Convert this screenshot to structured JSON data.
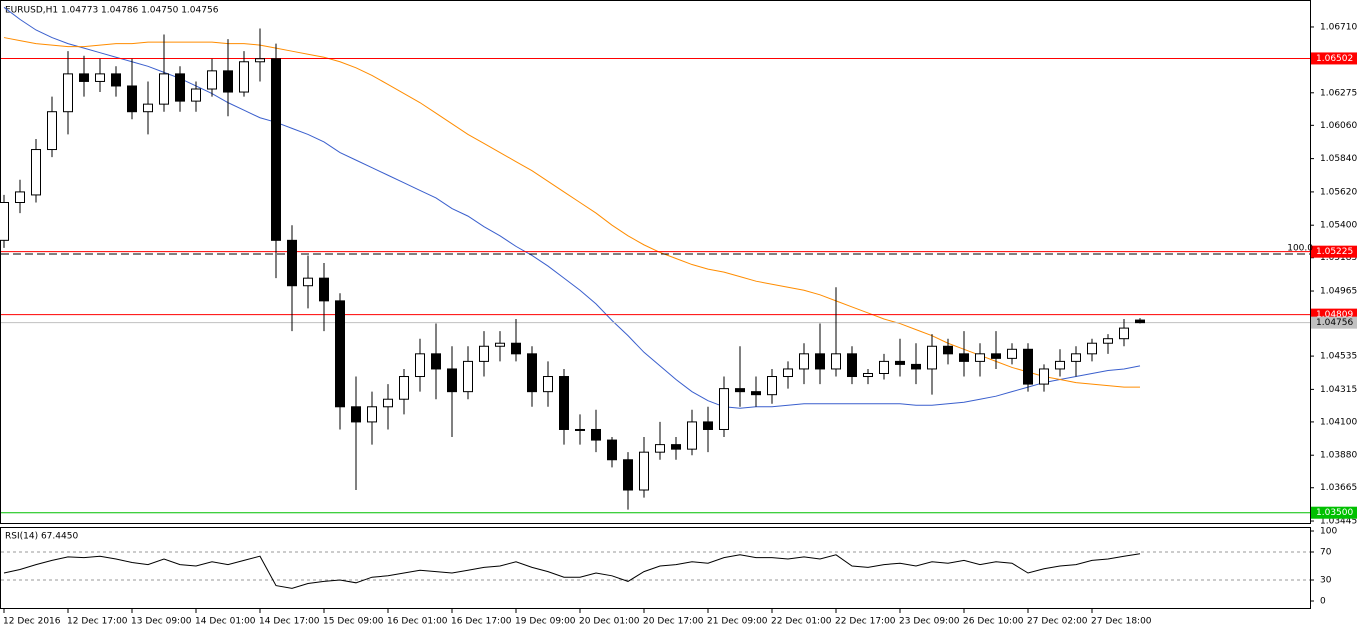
{
  "chart_data": [
    {
      "type": "candlestick",
      "title": "EURUSD,H1  1.04773 1.04786 1.04750 1.04756",
      "categories": [
        "12 Dec 2016",
        null,
        null,
        null,
        "12 Dec 17:00",
        null,
        null,
        null,
        "13 Dec 09:00",
        null,
        null,
        null,
        "14 Dec 01:00",
        null,
        null,
        null,
        "14 Dec 17:00",
        null,
        null,
        null,
        "15 Dec 09:00",
        null,
        null,
        null,
        "16 Dec 01:00",
        null,
        null,
        null,
        "16 Dec 17:00",
        null,
        null,
        null,
        "19 Dec 09:00",
        null,
        null,
        null,
        "20 Dec 01:00",
        null,
        null,
        null,
        "20 Dec 17:00",
        null,
        null,
        null,
        "21 Dec 09:00",
        null,
        null,
        null,
        "22 Dec 01:00",
        null,
        null,
        null,
        "22 Dec 17:00",
        null,
        null,
        null,
        "23 Dec 09:00",
        null,
        null,
        null,
        "26 Dec 10:00",
        null,
        null,
        null,
        "27 Dec 02:00",
        null,
        null,
        null,
        "27 Dec 18:00",
        null,
        null,
        null
      ],
      "open": [
        1.053,
        1.0555,
        1.056,
        1.059,
        1.0615,
        1.064,
        1.0635,
        1.064,
        1.0632,
        1.0615,
        1.062,
        1.064,
        1.0622,
        1.063,
        1.0642,
        1.0628,
        1.0648,
        1.065,
        1.053,
        1.05,
        1.0505,
        1.049,
        1.042,
        1.041,
        1.042,
        1.0425,
        1.044,
        1.0455,
        1.0445,
        1.043,
        1.045,
        1.046,
        1.0462,
        1.0455,
        1.043,
        1.044,
        1.0405,
        1.0405,
        1.0398,
        1.0385,
        1.0365,
        1.039,
        1.0395,
        1.0392,
        1.041,
        1.0405,
        1.0432,
        1.043,
        1.0428,
        1.044,
        1.0445,
        1.0455,
        1.0445,
        1.0455,
        1.044,
        1.0442,
        1.045,
        1.0448,
        1.0445,
        1.046,
        1.0455,
        1.045,
        1.0455,
        1.0452,
        1.0458,
        1.0435,
        1.0445,
        1.045,
        1.0455,
        1.0462,
        1.0465,
        1.04773
      ],
      "high": [
        1.056,
        1.057,
        1.0597,
        1.0625,
        1.0655,
        1.0652,
        1.065,
        1.0645,
        1.065,
        1.0635,
        1.0666,
        1.0645,
        1.0635,
        1.065,
        1.0663,
        1.0655,
        1.067,
        1.066,
        1.054,
        1.052,
        1.0515,
        1.0495,
        1.044,
        1.043,
        1.0435,
        1.0445,
        1.0465,
        1.0475,
        1.046,
        1.046,
        1.047,
        1.047,
        1.0478,
        1.046,
        1.045,
        1.0445,
        1.0415,
        1.0418,
        1.04,
        1.039,
        1.04,
        1.041,
        1.04,
        1.0418,
        1.042,
        1.044,
        1.046,
        1.044,
        1.0445,
        1.045,
        1.0462,
        1.0475,
        1.0499,
        1.046,
        1.0445,
        1.0455,
        1.0465,
        1.0462,
        1.0468,
        1.0465,
        1.047,
        1.0462,
        1.047,
        1.0462,
        1.0462,
        1.0448,
        1.0458,
        1.046,
        1.0465,
        1.0468,
        1.0478,
        1.04786
      ],
      "low": [
        1.0525,
        1.0548,
        1.0555,
        1.0585,
        1.06,
        1.0625,
        1.0628,
        1.0625,
        1.061,
        1.06,
        1.0615,
        1.0615,
        1.0615,
        1.0625,
        1.0612,
        1.0625,
        1.0635,
        1.0505,
        1.047,
        1.0485,
        1.047,
        1.0405,
        1.0365,
        1.0395,
        1.0405,
        1.0415,
        1.043,
        1.0425,
        1.04,
        1.0425,
        1.044,
        1.045,
        1.045,
        1.042,
        1.042,
        1.0395,
        1.0395,
        1.039,
        1.038,
        1.0352,
        1.036,
        1.0385,
        1.0385,
        1.0388,
        1.039,
        1.04,
        1.042,
        1.042,
        1.0422,
        1.0432,
        1.0435,
        1.0435,
        1.044,
        1.0435,
        1.0435,
        1.0438,
        1.044,
        1.0435,
        1.0428,
        1.0448,
        1.044,
        1.044,
        1.0445,
        1.0448,
        1.043,
        1.043,
        1.044,
        1.044,
        1.045,
        1.0455,
        1.046,
        1.0475
      ],
      "close": [
        1.0555,
        1.0562,
        1.059,
        1.0615,
        1.064,
        1.0635,
        1.064,
        1.0632,
        1.0615,
        1.062,
        1.064,
        1.0622,
        1.063,
        1.0642,
        1.0628,
        1.0648,
        1.065,
        1.053,
        1.05,
        1.0505,
        1.049,
        1.042,
        1.041,
        1.042,
        1.0425,
        1.044,
        1.0455,
        1.0445,
        1.043,
        1.045,
        1.046,
        1.0462,
        1.0455,
        1.043,
        1.044,
        1.0405,
        1.0405,
        1.0398,
        1.0385,
        1.0365,
        1.039,
        1.0395,
        1.0392,
        1.041,
        1.0405,
        1.0432,
        1.043,
        1.0428,
        1.044,
        1.0445,
        1.0455,
        1.0445,
        1.0455,
        1.044,
        1.0442,
        1.045,
        1.0448,
        1.0445,
        1.046,
        1.0455,
        1.045,
        1.0455,
        1.0452,
        1.0458,
        1.0435,
        1.0445,
        1.045,
        1.0455,
        1.0462,
        1.0465,
        1.0472,
        1.04756
      ],
      "lines": [
        {
          "color": "#3a5fcd",
          "values": [
            1.0684,
            1.0676,
            1.0669,
            1.0664,
            1.066,
            1.0657,
            1.0654,
            1.0651,
            1.0648,
            1.0645,
            1.0641,
            1.0637,
            1.0632,
            1.0627,
            1.0621,
            1.0616,
            1.0611,
            1.0608,
            1.0604,
            1.06,
            1.0595,
            1.0588,
            1.0583,
            1.0578,
            1.0573,
            1.0568,
            1.0563,
            1.0558,
            1.0551,
            1.0546,
            1.0539,
            1.0533,
            1.0526,
            1.052,
            1.0513,
            1.0505,
            1.0497,
            1.0488,
            1.0477,
            1.0467,
            1.0456,
            1.0447,
            1.0438,
            1.043,
            1.0424,
            1.042,
            1.0419,
            1.042,
            1.042,
            1.0421,
            1.0422,
            1.0422,
            1.0422,
            1.0422,
            1.0422,
            1.0422,
            1.0422,
            1.0421,
            1.0421,
            1.0422,
            1.0423,
            1.0425,
            1.0427,
            1.043,
            1.0433,
            1.0436,
            1.0438,
            1.044,
            1.0442,
            1.0444,
            1.0445,
            1.0447
          ]
        },
        {
          "color": "#ff8c00",
          "values": [
            1.0664,
            1.0662,
            1.066,
            1.0659,
            1.0658,
            1.0658,
            1.0659,
            1.066,
            1.066,
            1.0661,
            1.0661,
            1.0661,
            1.0661,
            1.0661,
            1.066,
            1.066,
            1.0659,
            1.0657,
            1.0655,
            1.0653,
            1.0651,
            1.0648,
            1.0644,
            1.0639,
            1.0633,
            1.0627,
            1.0621,
            1.0614,
            1.0607,
            1.06,
            1.0594,
            1.0588,
            1.0582,
            1.0576,
            1.0569,
            1.0562,
            1.0555,
            1.0548,
            1.054,
            1.0533,
            1.0527,
            1.0522,
            1.0518,
            1.0514,
            1.0511,
            1.0509,
            1.0506,
            1.0503,
            1.0501,
            1.0499,
            1.0497,
            1.0494,
            1.049,
            1.0486,
            1.0482,
            1.0478,
            1.0475,
            1.0471,
            1.0467,
            1.0462,
            1.0458,
            1.0454,
            1.045,
            1.0446,
            1.0443,
            1.044,
            1.0438,
            1.0436,
            1.0435,
            1.0434,
            1.0433,
            1.0433
          ]
        }
      ],
      "levels": [
        {
          "value": 1.06502,
          "label": "1.06502",
          "color": "#ff0000",
          "label_text_color": "#ffffff"
        },
        {
          "value": 1.05225,
          "label": "1.05225",
          "color": "#ff0000",
          "label_text_color": "#ffffff"
        },
        {
          "value": 1.0521,
          "label": "100.0",
          "color": "#000000",
          "dash": true
        },
        {
          "value": 1.04809,
          "label": "1.04809",
          "color": "#ff0000",
          "label_text_color": "#ffffff"
        },
        {
          "value": 1.04756,
          "label": "1.04756",
          "color": "#c0c0c0",
          "label_text_color": "#000000"
        },
        {
          "value": 1.035,
          "label": "1.03500",
          "color": "#00c000",
          "label_text_color": "#ffffff"
        }
      ],
      "ylim": [
        1.03432,
        1.06875
      ],
      "yticks": [
        {
          "value": 1.0671,
          "label": "1.06710"
        },
        {
          "value": 1.06275,
          "label": "1.06275"
        },
        {
          "value": 1.0606,
          "label": "1.06060"
        },
        {
          "value": 1.0584,
          "label": "1.05840"
        },
        {
          "value": 1.0562,
          "label": "1.05620"
        },
        {
          "value": 1.054,
          "label": "1.05400"
        },
        {
          "value": 1.05185,
          "label": "1.05185"
        },
        {
          "value": 1.04965,
          "label": "1.04965"
        },
        {
          "value": 1.04535,
          "label": "1.04535"
        },
        {
          "value": 1.04315,
          "label": "1.04315"
        },
        {
          "value": 1.041,
          "label": "1.04100"
        },
        {
          "value": 1.0388,
          "label": "1.03880"
        },
        {
          "value": 1.03665,
          "label": "1.03665"
        },
        {
          "value": 1.03445,
          "label": "1.03445"
        }
      ]
    },
    {
      "type": "line",
      "title": "RSI(14) 67.4450",
      "color": "#000000",
      "values": [
        40,
        45,
        52,
        58,
        63,
        62,
        64,
        60,
        55,
        52,
        60,
        52,
        50,
        56,
        52,
        58,
        64,
        22,
        18,
        25,
        28,
        30,
        26,
        34,
        36,
        40,
        44,
        42,
        40,
        44,
        48,
        50,
        56,
        48,
        42,
        34,
        34,
        40,
        36,
        28,
        42,
        50,
        52,
        56,
        54,
        62,
        66,
        62,
        62,
        60,
        63,
        60,
        66,
        50,
        48,
        52,
        54,
        50,
        56,
        54,
        58,
        52,
        56,
        54,
        40,
        46,
        50,
        52,
        58,
        60,
        64,
        67.445
      ],
      "ylim": [
        0,
        100
      ],
      "yticks": [
        100,
        70,
        30,
        0
      ],
      "levels": [
        70,
        30
      ]
    }
  ]
}
